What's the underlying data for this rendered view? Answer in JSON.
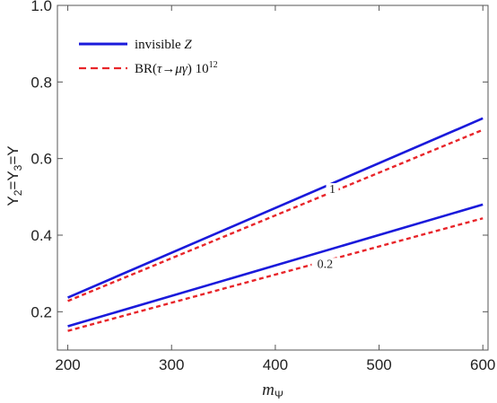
{
  "chart_data": {
    "type": "line",
    "xlabel_main": "m",
    "xlabel_sub": "Ψ",
    "ylabel_parts": [
      "Y",
      "2",
      "=Y",
      "3",
      "=Y"
    ],
    "xlim": [
      190,
      605
    ],
    "ylim": [
      0.1,
      1.0
    ],
    "x_ticks": [
      200,
      300,
      400,
      500,
      600
    ],
    "y_ticks": [
      "0.2",
      "0.4",
      "0.6",
      "0.8",
      "1.0"
    ],
    "legend": {
      "placement": "top-left",
      "entries": [
        {
          "label_main": "invisible ",
          "label_ital": "Z",
          "style": "solid",
          "color": "#1a1adb"
        },
        {
          "label_main": "BR(",
          "label_ital": "τ→μγ",
          "label_after": ") 10",
          "label_sup": "12",
          "style": "dashed",
          "color": "#e8252a"
        }
      ]
    },
    "series": [
      {
        "group": "invisible-z",
        "style": "solid",
        "color": "#1a1adb",
        "x": [
          200,
          600
        ],
        "y": [
          0.237,
          0.705
        ]
      },
      {
        "group": "invisible-z",
        "style": "solid",
        "color": "#1a1adb",
        "x": [
          200,
          600
        ],
        "y": [
          0.162,
          0.48
        ]
      },
      {
        "group": "br",
        "style": "dashed",
        "color": "#e8252a",
        "x": [
          200,
          600
        ],
        "y": [
          0.228,
          0.675
        ],
        "contour_label": "1",
        "label_x": 455,
        "label_y": 0.51
      },
      {
        "group": "br",
        "style": "dashed",
        "color": "#e8252a",
        "x": [
          200,
          600
        ],
        "y": [
          0.15,
          0.444
        ],
        "contour_label": "0.2",
        "label_x": 448,
        "label_y": 0.315
      }
    ]
  }
}
